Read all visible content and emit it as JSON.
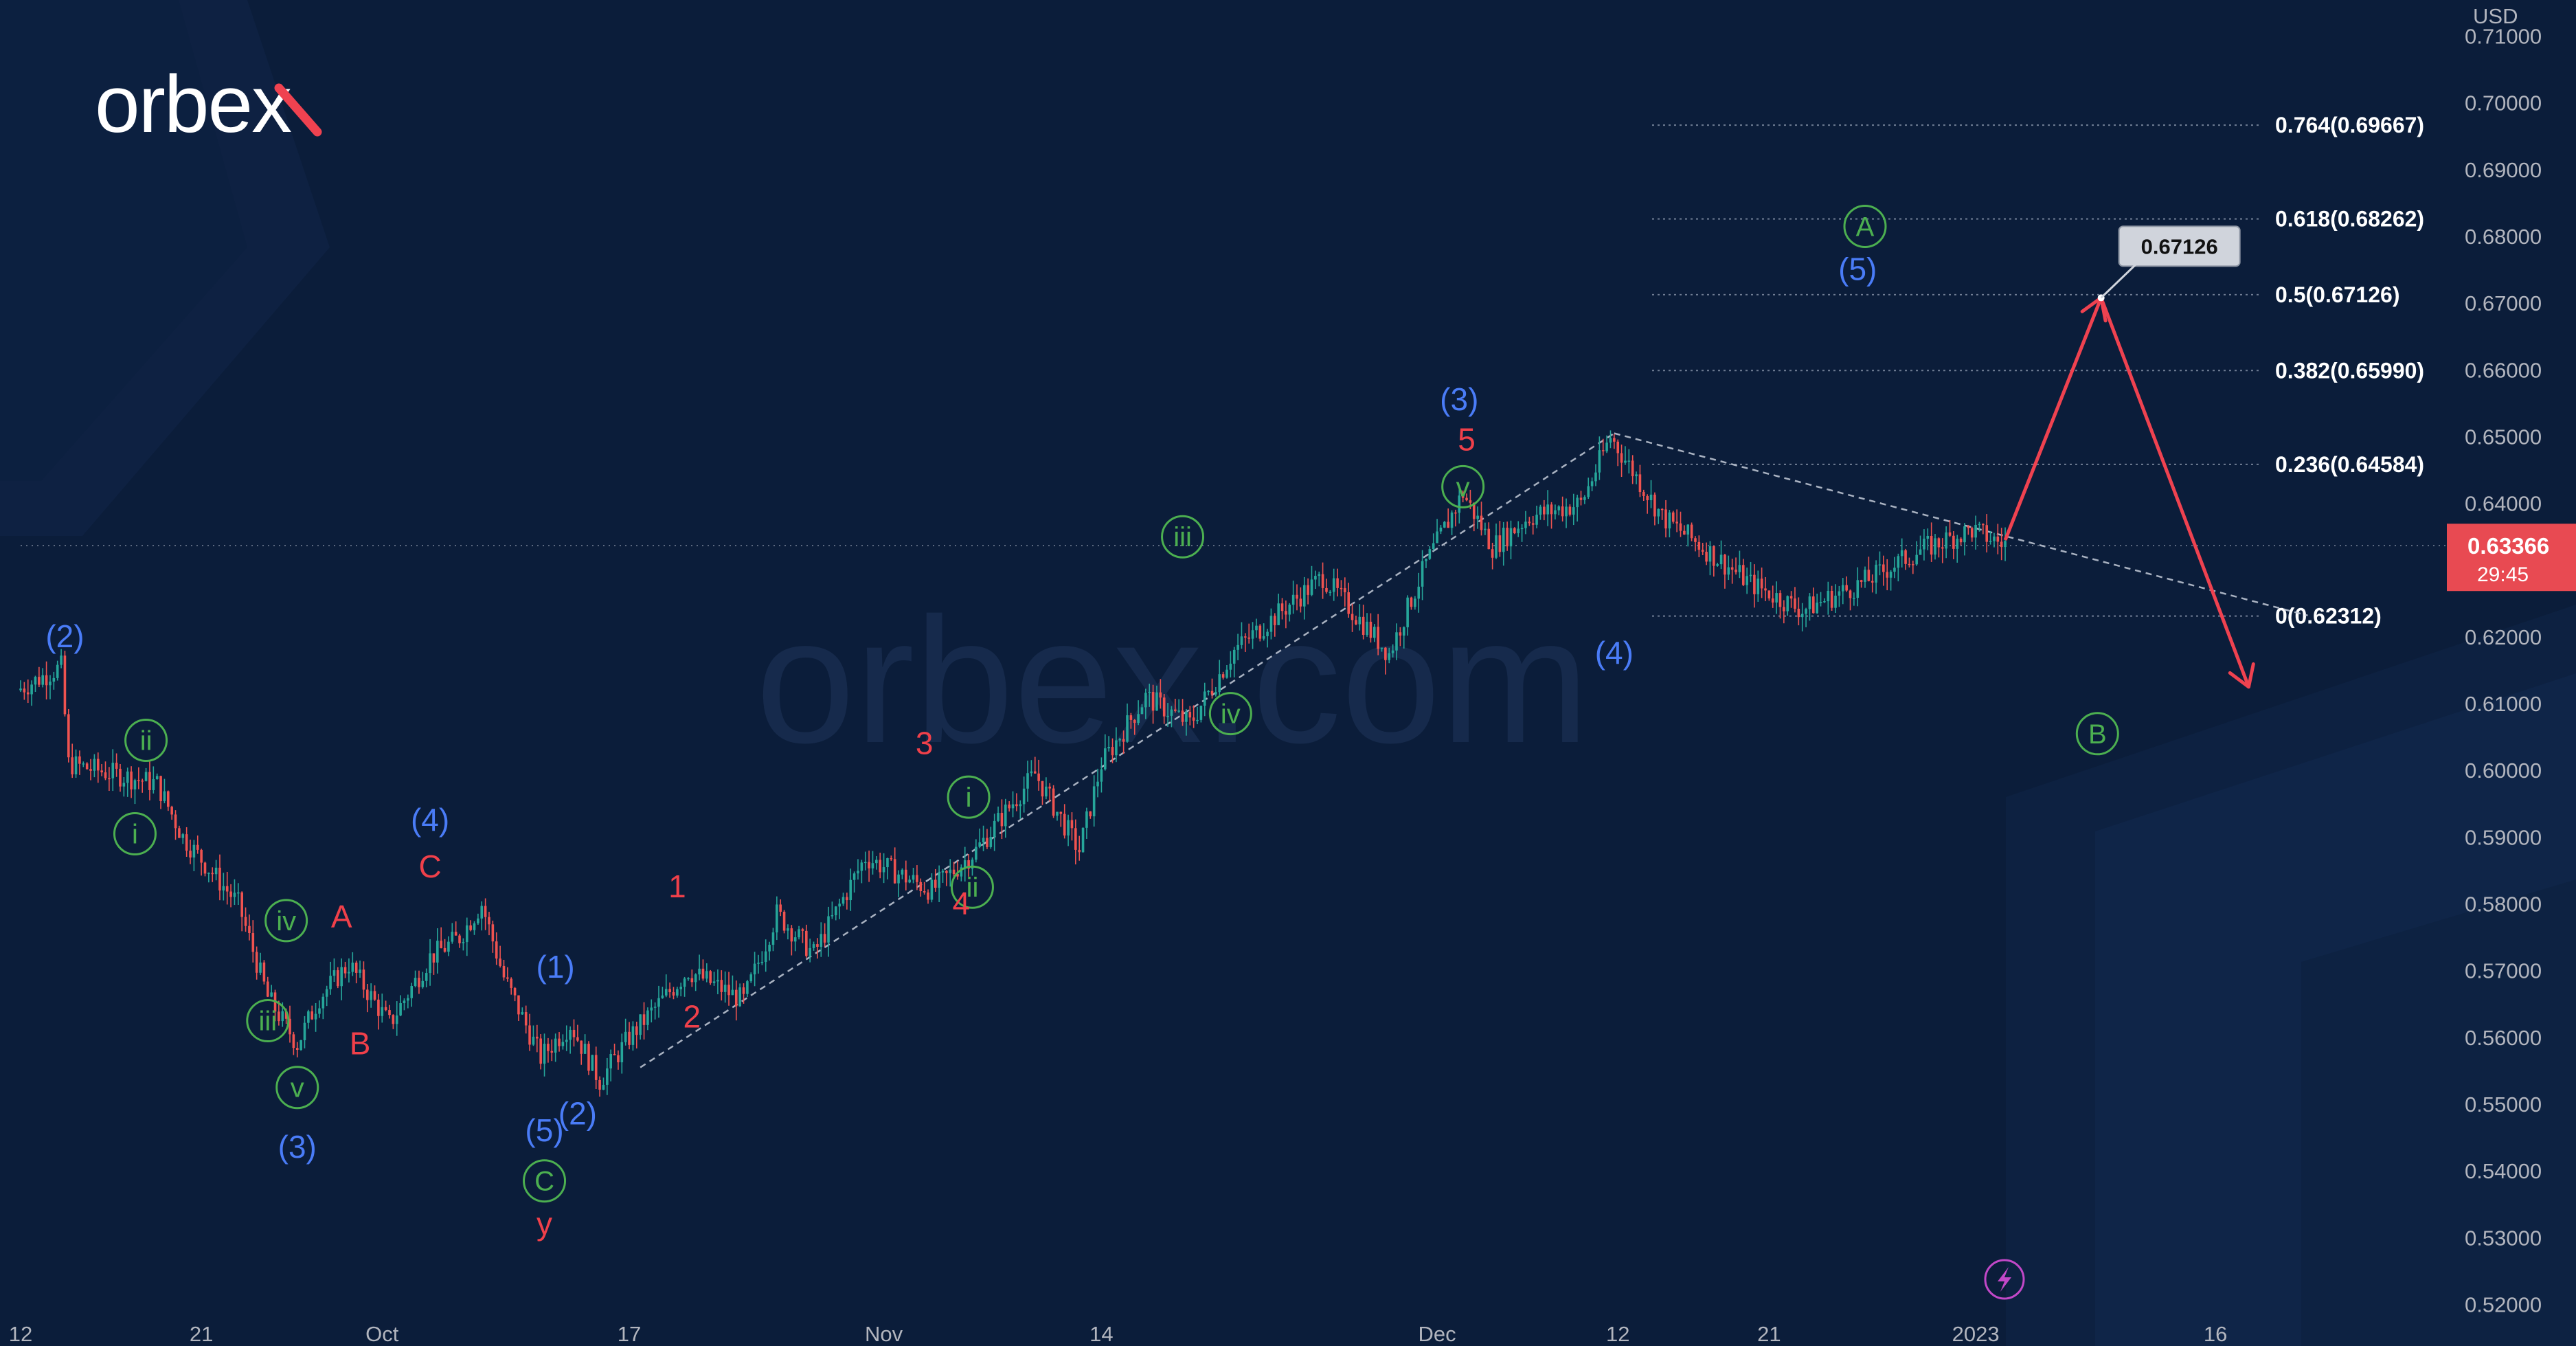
{
  "brand": {
    "logo_text": "orbex",
    "watermark": "orbex.com"
  },
  "colors": {
    "background": "#0b1d3a",
    "up": "#26a69a",
    "down": "#ef5350",
    "blue": "#4a7cf7",
    "red": "#f0404a",
    "green": "#4caf50",
    "arrow": "#ef4250"
  },
  "chart_data": {
    "type": "candlestick",
    "symbol": "AUDUSD",
    "currency_label": "USD",
    "y_range": [
      0.515,
      0.715
    ],
    "y_ticks": [
      "0.71000",
      "0.70000",
      "0.69000",
      "0.68000",
      "0.67000",
      "0.66000",
      "0.65000",
      "0.64000",
      "0.62000",
      "0.61000",
      "0.60000",
      "0.59000",
      "0.58000",
      "0.57000",
      "0.56000",
      "0.55000",
      "0.54000",
      "0.53000",
      "0.52000"
    ],
    "x_labels": [
      {
        "label": "12",
        "idx": 0
      },
      {
        "label": "21",
        "idx": 49
      },
      {
        "label": "Oct",
        "idx": 98
      },
      {
        "label": "17",
        "idx": 165
      },
      {
        "label": "Nov",
        "idx": 234
      },
      {
        "label": "14",
        "idx": 293
      },
      {
        "label": "Dec",
        "idx": 384
      },
      {
        "label": "12",
        "idx": 433
      },
      {
        "label": "21",
        "idx": 474
      },
      {
        "label": "2023",
        "idx": 530
      },
      {
        "label": "16",
        "idx": 595
      }
    ],
    "current_price": "0.63366",
    "countdown": "29:45",
    "fibonacci": [
      {
        "label": "0.764(0.69667)",
        "value": 0.69667
      },
      {
        "label": "0.618(0.68262)",
        "value": 0.68262
      },
      {
        "label": "0.5(0.67126)",
        "value": 0.67126
      },
      {
        "label": "0.382(0.65990)",
        "value": 0.6599
      },
      {
        "label": "0.236(0.64584)",
        "value": 0.64584
      },
      {
        "label": "0(0.62312)",
        "value": 0.62312
      }
    ],
    "target_price": "0.67126",
    "anchors": [
      {
        "idx": 0,
        "v": 0.612
      },
      {
        "idx": 12,
        "v": 0.6155
      },
      {
        "idx": 14,
        "v": 0.601
      },
      {
        "idx": 30,
        "v": 0.599
      },
      {
        "idx": 38,
        "v": 0.598
      },
      {
        "idx": 45,
        "v": 0.59
      },
      {
        "idx": 60,
        "v": 0.58
      },
      {
        "idx": 68,
        "v": 0.566
      },
      {
        "idx": 76,
        "v": 0.559
      },
      {
        "idx": 82,
        "v": 0.566
      },
      {
        "idx": 90,
        "v": 0.571
      },
      {
        "idx": 101,
        "v": 0.562
      },
      {
        "idx": 112,
        "v": 0.572
      },
      {
        "idx": 120,
        "v": 0.575
      },
      {
        "idx": 126,
        "v": 0.58
      },
      {
        "idx": 132,
        "v": 0.569
      },
      {
        "idx": 142,
        "v": 0.557
      },
      {
        "idx": 150,
        "v": 0.562
      },
      {
        "idx": 158,
        "v": 0.5535
      },
      {
        "idx": 166,
        "v": 0.56
      },
      {
        "idx": 182,
        "v": 0.57
      },
      {
        "idx": 197,
        "v": 0.5655
      },
      {
        "idx": 206,
        "v": 0.5785
      },
      {
        "idx": 216,
        "v": 0.5725
      },
      {
        "idx": 230,
        "v": 0.587
      },
      {
        "idx": 248,
        "v": 0.582
      },
      {
        "idx": 260,
        "v": 0.588
      },
      {
        "idx": 276,
        "v": 0.5995
      },
      {
        "idx": 288,
        "v": 0.588
      },
      {
        "idx": 294,
        "v": 0.601
      },
      {
        "idx": 306,
        "v": 0.611
      },
      {
        "idx": 318,
        "v": 0.607
      },
      {
        "idx": 330,
        "v": 0.618
      },
      {
        "idx": 354,
        "v": 0.629
      },
      {
        "idx": 372,
        "v": 0.6175
      },
      {
        "idx": 382,
        "v": 0.631
      },
      {
        "idx": 392,
        "v": 0.6415
      },
      {
        "idx": 400,
        "v": 0.6335
      },
      {
        "idx": 410,
        "v": 0.638
      },
      {
        "idx": 424,
        "v": 0.64
      },
      {
        "idx": 432,
        "v": 0.65
      },
      {
        "idx": 446,
        "v": 0.638
      },
      {
        "idx": 470,
        "v": 0.628
      },
      {
        "idx": 484,
        "v": 0.624
      },
      {
        "idx": 500,
        "v": 0.628
      },
      {
        "idx": 516,
        "v": 0.633
      },
      {
        "idx": 530,
        "v": 0.636
      },
      {
        "idx": 538,
        "v": 0.634
      }
    ],
    "forecast_path": [
      {
        "idx": 538,
        "v": 0.6345
      },
      {
        "idx": 564,
        "v": 0.6708
      },
      {
        "idx": 604,
        "v": 0.6125
      }
    ],
    "trendlines": [
      {
        "from": {
          "idx": 168,
          "v": 0.5555
        },
        "to": {
          "idx": 432,
          "v": 0.6505
        }
      },
      {
        "from": {
          "idx": 432,
          "v": 0.6505
        },
        "to": {
          "idx": 620,
          "v": 0.6232
        }
      }
    ],
    "wave_labels": [
      {
        "text": "(2)",
        "idx": 12,
        "v": 0.62,
        "color": "blue"
      },
      {
        "text": "ii",
        "idx": 34,
        "v": 0.6045,
        "color": "green",
        "circle": true
      },
      {
        "text": "i",
        "idx": 31,
        "v": 0.5905,
        "color": "green",
        "circle": true
      },
      {
        "text": "iv",
        "idx": 72,
        "v": 0.5775,
        "color": "green",
        "circle": true
      },
      {
        "text": "A",
        "idx": 87,
        "v": 0.578,
        "color": "red"
      },
      {
        "text": "iii",
        "idx": 67,
        "v": 0.5625,
        "color": "green",
        "circle": true
      },
      {
        "text": "B",
        "idx": 92,
        "v": 0.559,
        "color": "red"
      },
      {
        "text": "v",
        "idx": 75,
        "v": 0.5525,
        "color": "green",
        "circle": true
      },
      {
        "text": "(3)",
        "idx": 75,
        "v": 0.5435,
        "color": "blue"
      },
      {
        "text": "(4)",
        "idx": 111,
        "v": 0.5925,
        "color": "blue"
      },
      {
        "text": "C",
        "idx": 111,
        "v": 0.5855,
        "color": "red"
      },
      {
        "text": "(1)",
        "idx": 145,
        "v": 0.5705,
        "color": "blue"
      },
      {
        "text": "1",
        "idx": 178,
        "v": 0.5825,
        "color": "red"
      },
      {
        "text": "2",
        "idx": 182,
        "v": 0.563,
        "color": "red"
      },
      {
        "text": "(2)",
        "idx": 151,
        "v": 0.5485,
        "color": "blue"
      },
      {
        "text": "(5)",
        "idx": 142,
        "v": 0.546,
        "color": "blue"
      },
      {
        "text": "C",
        "idx": 142,
        "v": 0.5385,
        "color": "green",
        "circle": true
      },
      {
        "text": "y",
        "idx": 142,
        "v": 0.532,
        "color": "red"
      },
      {
        "text": "3",
        "idx": 245,
        "v": 0.604,
        "color": "red"
      },
      {
        "text": "i",
        "idx": 257,
        "v": 0.596,
        "color": "green",
        "circle": true
      },
      {
        "text": "ii",
        "idx": 258,
        "v": 0.5825,
        "color": "green",
        "circle": true
      },
      {
        "text": "4",
        "idx": 255,
        "v": 0.58,
        "color": "red"
      },
      {
        "text": "iii",
        "idx": 315,
        "v": 0.635,
        "color": "green",
        "circle": true
      },
      {
        "text": "iv",
        "idx": 328,
        "v": 0.6085,
        "color": "green",
        "circle": true
      },
      {
        "text": "(3)",
        "idx": 390,
        "v": 0.6555,
        "color": "blue"
      },
      {
        "text": "5",
        "idx": 392,
        "v": 0.6495,
        "color": "red"
      },
      {
        "text": "v",
        "idx": 391,
        "v": 0.6425,
        "color": "green",
        "circle": true
      },
      {
        "text": "(4)",
        "idx": 432,
        "v": 0.6175,
        "color": "blue"
      },
      {
        "text": "A",
        "idx": 500,
        "v": 0.6815,
        "color": "green",
        "circle": true
      },
      {
        "text": "(5)",
        "idx": 498,
        "v": 0.675,
        "color": "blue"
      },
      {
        "text": "B",
        "idx": 563,
        "v": 0.6055,
        "color": "green",
        "circle": true
      }
    ]
  }
}
